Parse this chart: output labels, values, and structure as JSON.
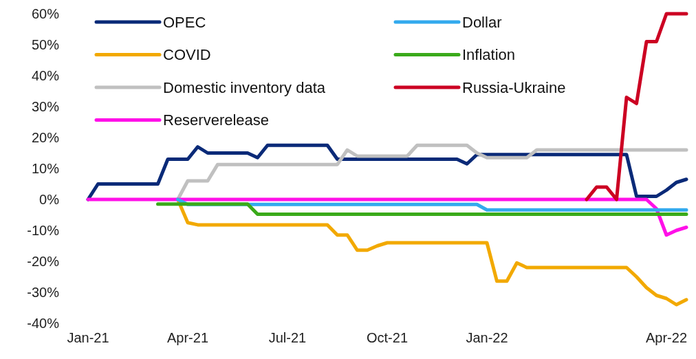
{
  "chart_data": {
    "type": "line",
    "legend": "top left",
    "categories": [
      "Jan-21",
      null,
      null,
      null,
      null,
      null,
      null,
      null,
      null,
      null,
      "Apr-21",
      null,
      null,
      null,
      null,
      null,
      null,
      null,
      null,
      null,
      "Jul-21",
      null,
      null,
      null,
      null,
      null,
      null,
      null,
      null,
      null,
      "Oct-21",
      null,
      null,
      null,
      null,
      null,
      null,
      null,
      null,
      null,
      "Jan-22",
      null,
      null,
      null,
      null,
      null,
      null,
      null,
      null,
      null,
      null,
      null,
      null,
      null,
      null,
      null,
      null,
      null,
      "Apr-22",
      null,
      null
    ],
    "ylim": [
      -40,
      60
    ],
    "yticks": [
      {
        "value": -40,
        "label": "-40%"
      },
      {
        "value": -30,
        "label": "-30%"
      },
      {
        "value": -20,
        "label": "-20%"
      },
      {
        "value": -10,
        "label": "-10%"
      },
      {
        "value": 0,
        "label": "0%"
      },
      {
        "value": 10,
        "label": "10%"
      },
      {
        "value": 20,
        "label": "20%"
      },
      {
        "value": 30,
        "label": "30%"
      },
      {
        "value": 40,
        "label": "40%"
      },
      {
        "value": 50,
        "label": "50%"
      },
      {
        "value": 60,
        "label": "60%"
      }
    ],
    "series": [
      {
        "name": "OPEC",
        "color": "#0a2a78",
        "values": [
          0,
          5,
          5,
          5,
          5,
          5,
          5,
          5,
          13,
          13,
          13,
          17,
          15,
          15,
          15,
          15,
          15,
          13.5,
          17.5,
          17.5,
          17.5,
          17.5,
          17.5,
          17.5,
          17.5,
          13,
          13,
          13,
          13,
          13,
          13,
          13,
          13,
          13,
          13,
          13,
          13,
          13,
          11.5,
          14.5,
          14.5,
          14.5,
          14.5,
          14.5,
          14.5,
          14.5,
          14.5,
          14.5,
          14.5,
          14.5,
          14.5,
          14.5,
          14.5,
          14.5,
          14.5,
          1,
          1,
          1,
          3,
          5.5,
          6.5
        ]
      },
      {
        "name": "COVID",
        "color": "#f2a900",
        "values": [
          null,
          null,
          null,
          null,
          null,
          null,
          null,
          null,
          null,
          0,
          -7.5,
          -8.2,
          -8.2,
          -8.2,
          -8.2,
          -8.2,
          -8.2,
          -8.2,
          -8.2,
          -8.2,
          -8.2,
          -8.2,
          -8.2,
          -8.2,
          -8.2,
          -11.5,
          -11.5,
          -16.4,
          -16.4,
          -15,
          -14,
          -14,
          -14,
          -14,
          -14,
          -14,
          -14,
          -14,
          -14,
          -14,
          -14,
          -26.4,
          -26.4,
          -20.5,
          -22,
          -22,
          -22,
          -22,
          -22,
          -22,
          -22,
          -22,
          -22,
          -22,
          -22,
          -25,
          -28.5,
          -31,
          -32,
          -34,
          -32.4
        ]
      },
      {
        "name": "Domestic inventory data",
        "color": "#c0c0c0",
        "values": [
          null,
          null,
          null,
          null,
          null,
          null,
          null,
          null,
          null,
          0,
          6,
          6,
          6,
          11.3,
          11.3,
          11.3,
          11.3,
          11.3,
          11.3,
          11.3,
          11.3,
          11.3,
          11.3,
          11.3,
          11.3,
          11.3,
          16,
          14,
          14,
          14,
          14,
          14,
          14,
          17.5,
          17.5,
          17.5,
          17.5,
          17.5,
          17.5,
          15,
          13.5,
          13.5,
          13.5,
          13.5,
          13.5,
          16,
          16,
          16,
          16,
          16,
          16,
          16,
          16,
          16,
          16,
          16,
          16,
          16,
          16,
          16,
          16
        ]
      },
      {
        "name": "Reserverelease",
        "color": "#ff10e8",
        "values": [
          0,
          0,
          0,
          0,
          0,
          0,
          0,
          0,
          0,
          0,
          0,
          0,
          0,
          0,
          0,
          0,
          0,
          0,
          0,
          0,
          0,
          0,
          0,
          0,
          0,
          0,
          0,
          0,
          0,
          0,
          0,
          0,
          0,
          0,
          0,
          0,
          0,
          0,
          0,
          0,
          0,
          0,
          0,
          0,
          0,
          0,
          0,
          0,
          0,
          0,
          0,
          0,
          0,
          0,
          0,
          0,
          0,
          -3,
          -11.5,
          -10,
          -9
        ]
      },
      {
        "name": "Dollar",
        "color": "#33aaee",
        "values": [
          null,
          null,
          null,
          null,
          null,
          null,
          null,
          null,
          null,
          0,
          -1.6,
          -1.6,
          -1.6,
          -1.6,
          -1.6,
          -1.6,
          -1.6,
          -1.6,
          -1.6,
          -1.6,
          -1.6,
          -1.6,
          -1.6,
          -1.6,
          -1.6,
          -1.6,
          -1.6,
          -1.6,
          -1.6,
          -1.6,
          -1.6,
          -1.6,
          -1.6,
          -1.6,
          -1.6,
          -1.6,
          -1.6,
          -1.6,
          -1.6,
          -1.6,
          -3.4,
          -3.4,
          -3.4,
          -3.4,
          -3.4,
          -3.4,
          -3.4,
          -3.4,
          -3.4,
          -3.4,
          -3.4,
          -3.4,
          -3.4,
          -3.4,
          -3.4,
          -3.4,
          -3.4,
          -3.4,
          -3.4,
          -3.4,
          -3.4
        ]
      },
      {
        "name": "Inflation",
        "color": "#3aaa1a",
        "values": [
          null,
          null,
          null,
          null,
          null,
          null,
          null,
          -1.5,
          -1.5,
          -1.5,
          -1.5,
          -1.5,
          -1.5,
          -1.5,
          -1.5,
          -1.5,
          -1.5,
          -4.8,
          -4.8,
          -4.8,
          -4.8,
          -4.8,
          -4.8,
          -4.8,
          -4.8,
          -4.8,
          -4.8,
          -4.8,
          -4.8,
          -4.8,
          -4.8,
          -4.8,
          -4.8,
          -4.8,
          -4.8,
          -4.8,
          -4.8,
          -4.8,
          -4.8,
          -4.8,
          -4.8,
          -4.8,
          -4.8,
          -4.8,
          -4.8,
          -4.8,
          -4.8,
          -4.8,
          -4.8,
          -4.8,
          -4.8,
          -4.8,
          -4.8,
          -4.8,
          -4.8,
          -4.8,
          -4.8,
          -4.8,
          -4.8,
          -4.8,
          -4.8
        ]
      },
      {
        "name": "Russia-Ukraine",
        "color": "#cc0022",
        "values": [
          null,
          null,
          null,
          null,
          null,
          null,
          null,
          null,
          null,
          null,
          null,
          null,
          null,
          null,
          null,
          null,
          null,
          null,
          null,
          null,
          null,
          null,
          null,
          null,
          null,
          null,
          null,
          null,
          null,
          null,
          null,
          null,
          null,
          null,
          null,
          null,
          null,
          null,
          null,
          null,
          null,
          null,
          null,
          null,
          null,
          null,
          null,
          null,
          null,
          null,
          0,
          4,
          4,
          0,
          33,
          31,
          51,
          51,
          60,
          60,
          60
        ]
      }
    ]
  }
}
